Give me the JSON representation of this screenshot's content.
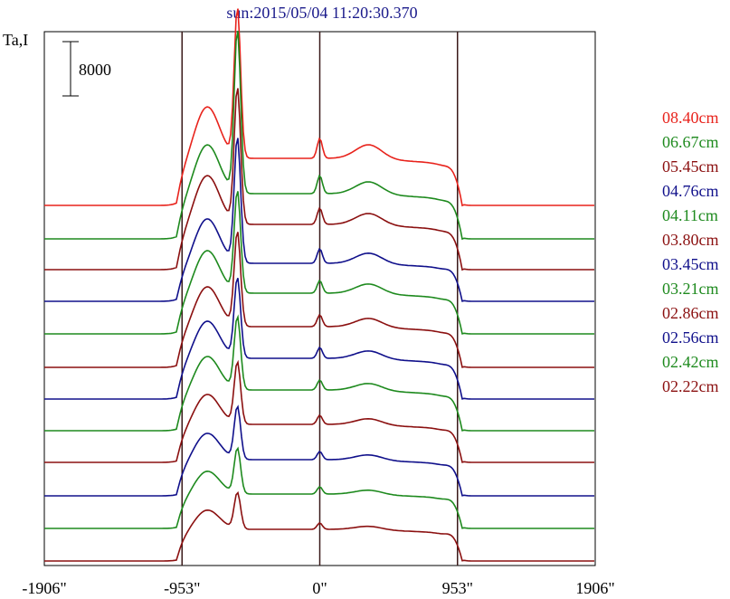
{
  "chart_data": {
    "type": "line",
    "title": "sun:2015/05/04 11:20:30.370",
    "ylabel": "Ta,I",
    "scale_bar_label": "8000",
    "scale_bar_value": 8000,
    "xlim": [
      -1906,
      1906
    ],
    "x_ticks": [
      {
        "value": -1906,
        "label": "-1906\""
      },
      {
        "value": -953,
        "label": "-953\""
      },
      {
        "value": 0,
        "label": "0\""
      },
      {
        "value": 953,
        "label": "953\""
      },
      {
        "value": 1906,
        "label": "1906\""
      }
    ],
    "vertical_markers": [
      -953,
      0,
      953
    ],
    "stacked_offsets": true,
    "series": [
      {
        "name": "08.40cm",
        "color": "#e8231c",
        "baseline": 227,
        "disk": 52,
        "limb": 58,
        "peak": 165,
        "right": 5,
        "center": 22,
        "bump": 16
      },
      {
        "name": "06.67cm",
        "color": "#1e8a1e",
        "baseline": 264,
        "disk": 50,
        "limb": 55,
        "peak": 180,
        "right": 5,
        "center": 20,
        "bump": 14
      },
      {
        "name": "05.45cm",
        "color": "#8b1010",
        "baseline": 298,
        "disk": 50,
        "limb": 55,
        "peak": 150,
        "right": 5,
        "center": 18,
        "bump": 13
      },
      {
        "name": "04.76cm",
        "color": "#10108b",
        "baseline": 333,
        "disk": 42,
        "limb": 50,
        "peak": 138,
        "right": 5,
        "center": 16,
        "bump": 12
      },
      {
        "name": "04.11cm",
        "color": "#1e8a1e",
        "baseline": 369,
        "disk": 45,
        "limb": 48,
        "peak": 112,
        "right": 5,
        "center": 14,
        "bump": 11
      },
      {
        "name": "03.80cm",
        "color": "#8b1010",
        "baseline": 406,
        "disk": 45,
        "limb": 45,
        "peak": 104,
        "right": 5,
        "center": 13,
        "bump": 10
      },
      {
        "name": "03.45cm",
        "color": "#10108b",
        "baseline": 441,
        "disk": 45,
        "limb": 42,
        "peak": 88,
        "right": 5,
        "center": 12,
        "bump": 9
      },
      {
        "name": "03.21cm",
        "color": "#1e8a1e",
        "baseline": 476,
        "disk": 45,
        "limb": 38,
        "peak": 80,
        "right": 5,
        "center": 11,
        "bump": 8
      },
      {
        "name": "02.86cm",
        "color": "#8b1010",
        "baseline": 511,
        "disk": 42,
        "limb": 34,
        "peak": 68,
        "right": 5,
        "center": 10,
        "bump": 7
      },
      {
        "name": "02.56cm",
        "color": "#10108b",
        "baseline": 548,
        "disk": 40,
        "limb": 30,
        "peak": 58,
        "right": 5,
        "center": 9,
        "bump": 6
      },
      {
        "name": "02.42cm",
        "color": "#1e8a1e",
        "baseline": 584,
        "disk": 38,
        "limb": 26,
        "peak": 50,
        "right": 5,
        "center": 8,
        "bump": 5
      },
      {
        "name": "02.22cm",
        "color": "#8b1010",
        "baseline": 620,
        "disk": 35,
        "limb": 22,
        "peak": 40,
        "right": 5,
        "center": 7,
        "bump": 4
      }
    ]
  }
}
